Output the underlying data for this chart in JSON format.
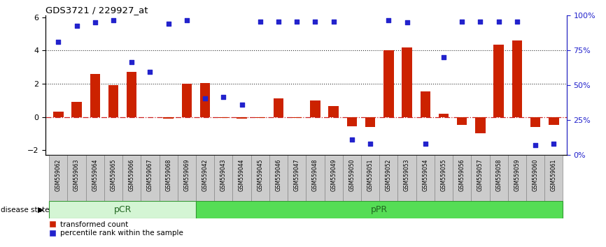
{
  "title": "GDS3721 / 229927_at",
  "samples": [
    "GSM559062",
    "GSM559063",
    "GSM559064",
    "GSM559065",
    "GSM559066",
    "GSM559067",
    "GSM559068",
    "GSM559069",
    "GSM559042",
    "GSM559043",
    "GSM559044",
    "GSM559045",
    "GSM559046",
    "GSM559047",
    "GSM559048",
    "GSM559049",
    "GSM559050",
    "GSM559051",
    "GSM559052",
    "GSM559053",
    "GSM559054",
    "GSM559055",
    "GSM559056",
    "GSM559057",
    "GSM559058",
    "GSM559059",
    "GSM559060",
    "GSM559061"
  ],
  "bar_heights": [
    0.3,
    0.9,
    2.6,
    1.9,
    2.7,
    0.0,
    -0.1,
    2.0,
    2.05,
    -0.05,
    -0.1,
    -0.08,
    1.1,
    -0.05,
    1.0,
    0.65,
    -0.55,
    -0.6,
    4.0,
    4.2,
    1.55,
    0.2,
    -0.5,
    -1.0,
    4.35,
    4.6,
    -0.6,
    -0.5
  ],
  "percentile_values": [
    4.5,
    5.5,
    5.7,
    5.8,
    3.3,
    2.7,
    5.6,
    5.8,
    1.1,
    1.2,
    0.75,
    5.75,
    5.75,
    5.75,
    5.75,
    5.75,
    -1.35,
    -1.6,
    5.8,
    5.7,
    -1.6,
    3.6,
    5.75,
    5.75,
    5.75,
    5.75,
    -1.7,
    -1.6
  ],
  "bar_color": "#cc2200",
  "dot_color": "#2222cc",
  "pcr_color": "#d4f5d4",
  "ppr_color": "#55dd55",
  "pcr_border": "#339933",
  "ppr_border": "#339933",
  "pcr_samples": 8,
  "ppr_samples": 20,
  "ylim": [
    -2.3,
    6.1
  ],
  "yticks": [
    -2,
    0,
    2,
    4,
    6
  ],
  "right_ytick_vals": [
    0,
    25,
    50,
    75,
    100
  ],
  "right_ylabels": [
    "0%",
    "25%",
    "50%",
    "75%",
    "100%"
  ],
  "hline0_color": "#cc2222",
  "hline0_style": "dashdot",
  "hline24_color": "#333333",
  "hline24_style": "dotted",
  "tick_bg_color": "#cccccc",
  "tick_bg_edge": "#888888",
  "legend_tc_label": "transformed count",
  "legend_pr_label": "percentile rank within the sample",
  "disease_state_label": "disease state",
  "pcr_label": "pCR",
  "ppr_label": "pPR"
}
